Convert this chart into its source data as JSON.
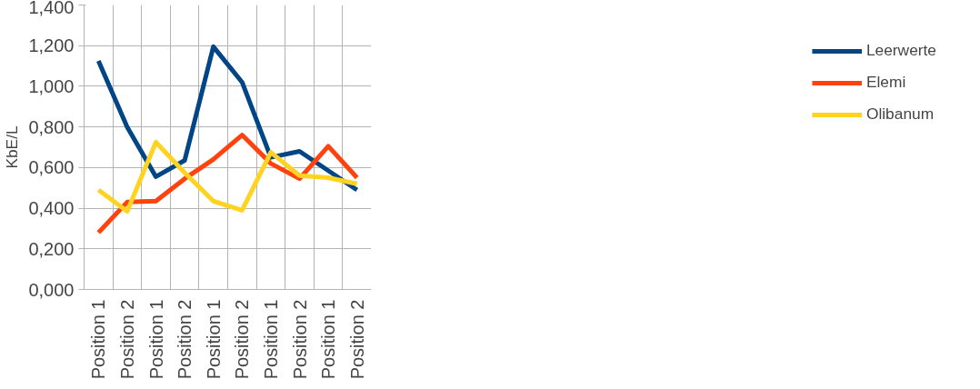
{
  "chart_data": {
    "type": "line",
    "ylabel": "KbE/L",
    "categories": [
      "Position 1",
      "Position 2",
      "Position 1",
      "Position 2",
      "Position 1",
      "Position 2",
      "Position 1",
      "Position 2",
      "Position 1",
      "Position 2"
    ],
    "series": [
      {
        "name": "Leerwerte",
        "color": "#004586",
        "values": [
          1.125,
          0.8,
          0.555,
          0.635,
          1.195,
          1.02,
          0.65,
          0.68,
          0.585,
          0.49
        ]
      },
      {
        "name": "Elemi",
        "color": "#ff420e",
        "values": [
          0.28,
          0.43,
          0.435,
          0.545,
          0.64,
          0.76,
          0.62,
          0.545,
          0.705,
          0.55
        ]
      },
      {
        "name": "Olibanum",
        "color": "#ffd320",
        "values": [
          0.49,
          0.385,
          0.725,
          0.575,
          0.435,
          0.39,
          0.675,
          0.56,
          0.55,
          0.52
        ]
      }
    ],
    "ylim": [
      0,
      1.4
    ],
    "yticks": [
      {
        "value": 0,
        "label": "0,000"
      },
      {
        "value": 0.2,
        "label": "0,200"
      },
      {
        "value": 0.4,
        "label": "0,400"
      },
      {
        "value": 0.6,
        "label": "0,600"
      },
      {
        "value": 0.8,
        "label": "0,800"
      },
      {
        "value": 1.0,
        "label": "1,000"
      },
      {
        "value": 1.2,
        "label": "1,200"
      },
      {
        "value": 1.4,
        "label": "1,400"
      }
    ],
    "grid": true,
    "legend": "right",
    "marker": "none",
    "line_style": "solid"
  }
}
